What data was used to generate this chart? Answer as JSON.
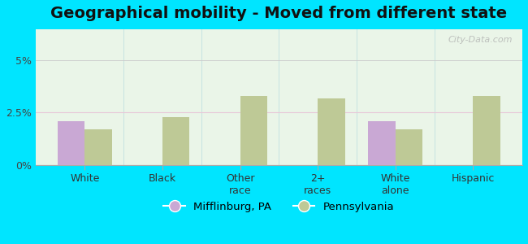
{
  "title": "Geographical mobility - Moved from different state",
  "categories": [
    "White",
    "Black",
    "Other\nrace",
    "2+\nraces",
    "White\nalone",
    "Hispanic"
  ],
  "mifflinburg": [
    2.1,
    0.0,
    0.0,
    0.0,
    2.1,
    0.0
  ],
  "pennsylvania": [
    1.7,
    2.3,
    3.3,
    3.2,
    1.7,
    3.3
  ],
  "mifflinburg_color": "#c9a8d4",
  "pennsylvania_color": "#bec996",
  "bg_outer": "#00e5ff",
  "bg_chart": "#eaf5e8",
  "yticks": [
    0,
    2.5,
    5
  ],
  "ylabels": [
    "0%",
    "2.5%",
    "5%"
  ],
  "ylim": [
    0,
    6.5
  ],
  "grid_color_pink": "#e8c8d8",
  "grid_color_gray": "#cccccc",
  "legend_mifflinburg": "Mifflinburg, PA",
  "legend_pennsylvania": "Pennsylvania",
  "bar_width": 0.35,
  "title_fontsize": 14,
  "watermark": "City-Data.com"
}
